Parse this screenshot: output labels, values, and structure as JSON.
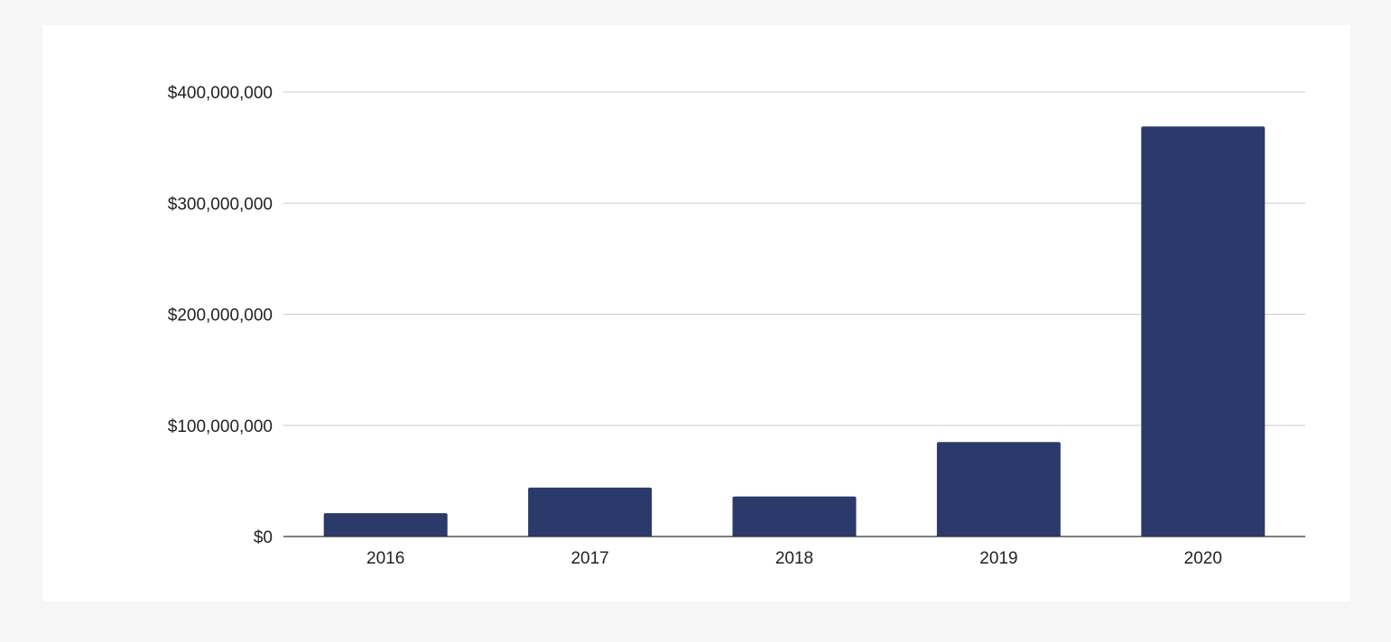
{
  "colors": {
    "background": "#f6f6f6",
    "card": "#ffffff",
    "bar": "#2b3a6b",
    "gridline": "#cccccc",
    "axis": "#333333",
    "text": "#222222"
  },
  "chart_data": {
    "type": "bar",
    "title": "",
    "xlabel": "",
    "ylabel": "",
    "categories": [
      "2016",
      "2017",
      "2018",
      "2019",
      "2020"
    ],
    "values": [
      21000000,
      44000000,
      36000000,
      85000000,
      369000000
    ],
    "ylim": [
      0,
      400000000
    ],
    "yticks": [
      0,
      100000000,
      200000000,
      300000000,
      400000000
    ],
    "ytick_labels": [
      "$0",
      "$100,000,000",
      "$200,000,000",
      "$300,000,000",
      "$400,000,000"
    ],
    "grid": true,
    "legend": "none"
  }
}
